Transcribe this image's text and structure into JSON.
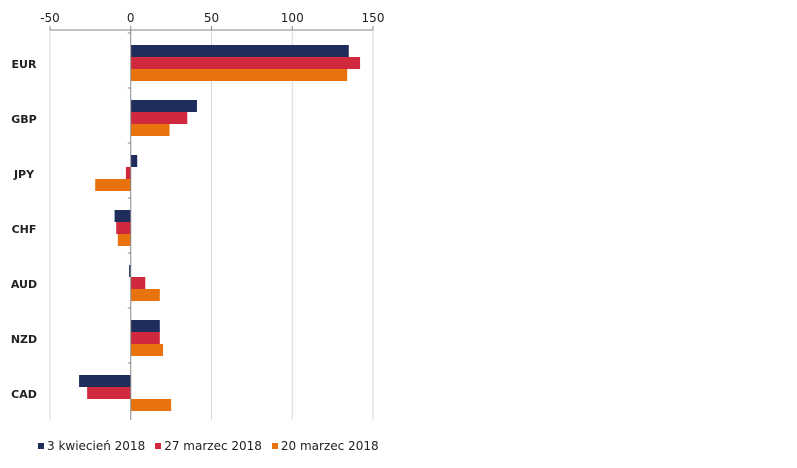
{
  "chart_data": {
    "type": "bar",
    "orientation": "horizontal",
    "categories": [
      "EUR",
      "GBP",
      "JPY",
      "CHF",
      "AUD",
      "NZD",
      "CAD"
    ],
    "series": [
      {
        "name": "3 kwiecień 2018",
        "color": "#1f2d5c",
        "values": [
          135,
          41,
          4,
          -10,
          -1,
          18,
          -32
        ]
      },
      {
        "name": "27 marzec 2018",
        "color": "#d0283c",
        "values": [
          142,
          35,
          -3,
          -9,
          9,
          18,
          -27
        ]
      },
      {
        "name": "20 marzec 2018",
        "color": "#e8720c",
        "values": [
          134,
          24,
          -22,
          -8,
          18,
          20,
          25
        ]
      }
    ],
    "xlim": [
      -50,
      150
    ],
    "x_ticks": [
      "-50",
      "0",
      "50",
      "100",
      "150"
    ],
    "x_tick_values": [
      -50,
      0,
      50,
      100,
      150
    ],
    "x_axis_position": "top",
    "grid": "vertical",
    "legend_position": "bottom"
  }
}
